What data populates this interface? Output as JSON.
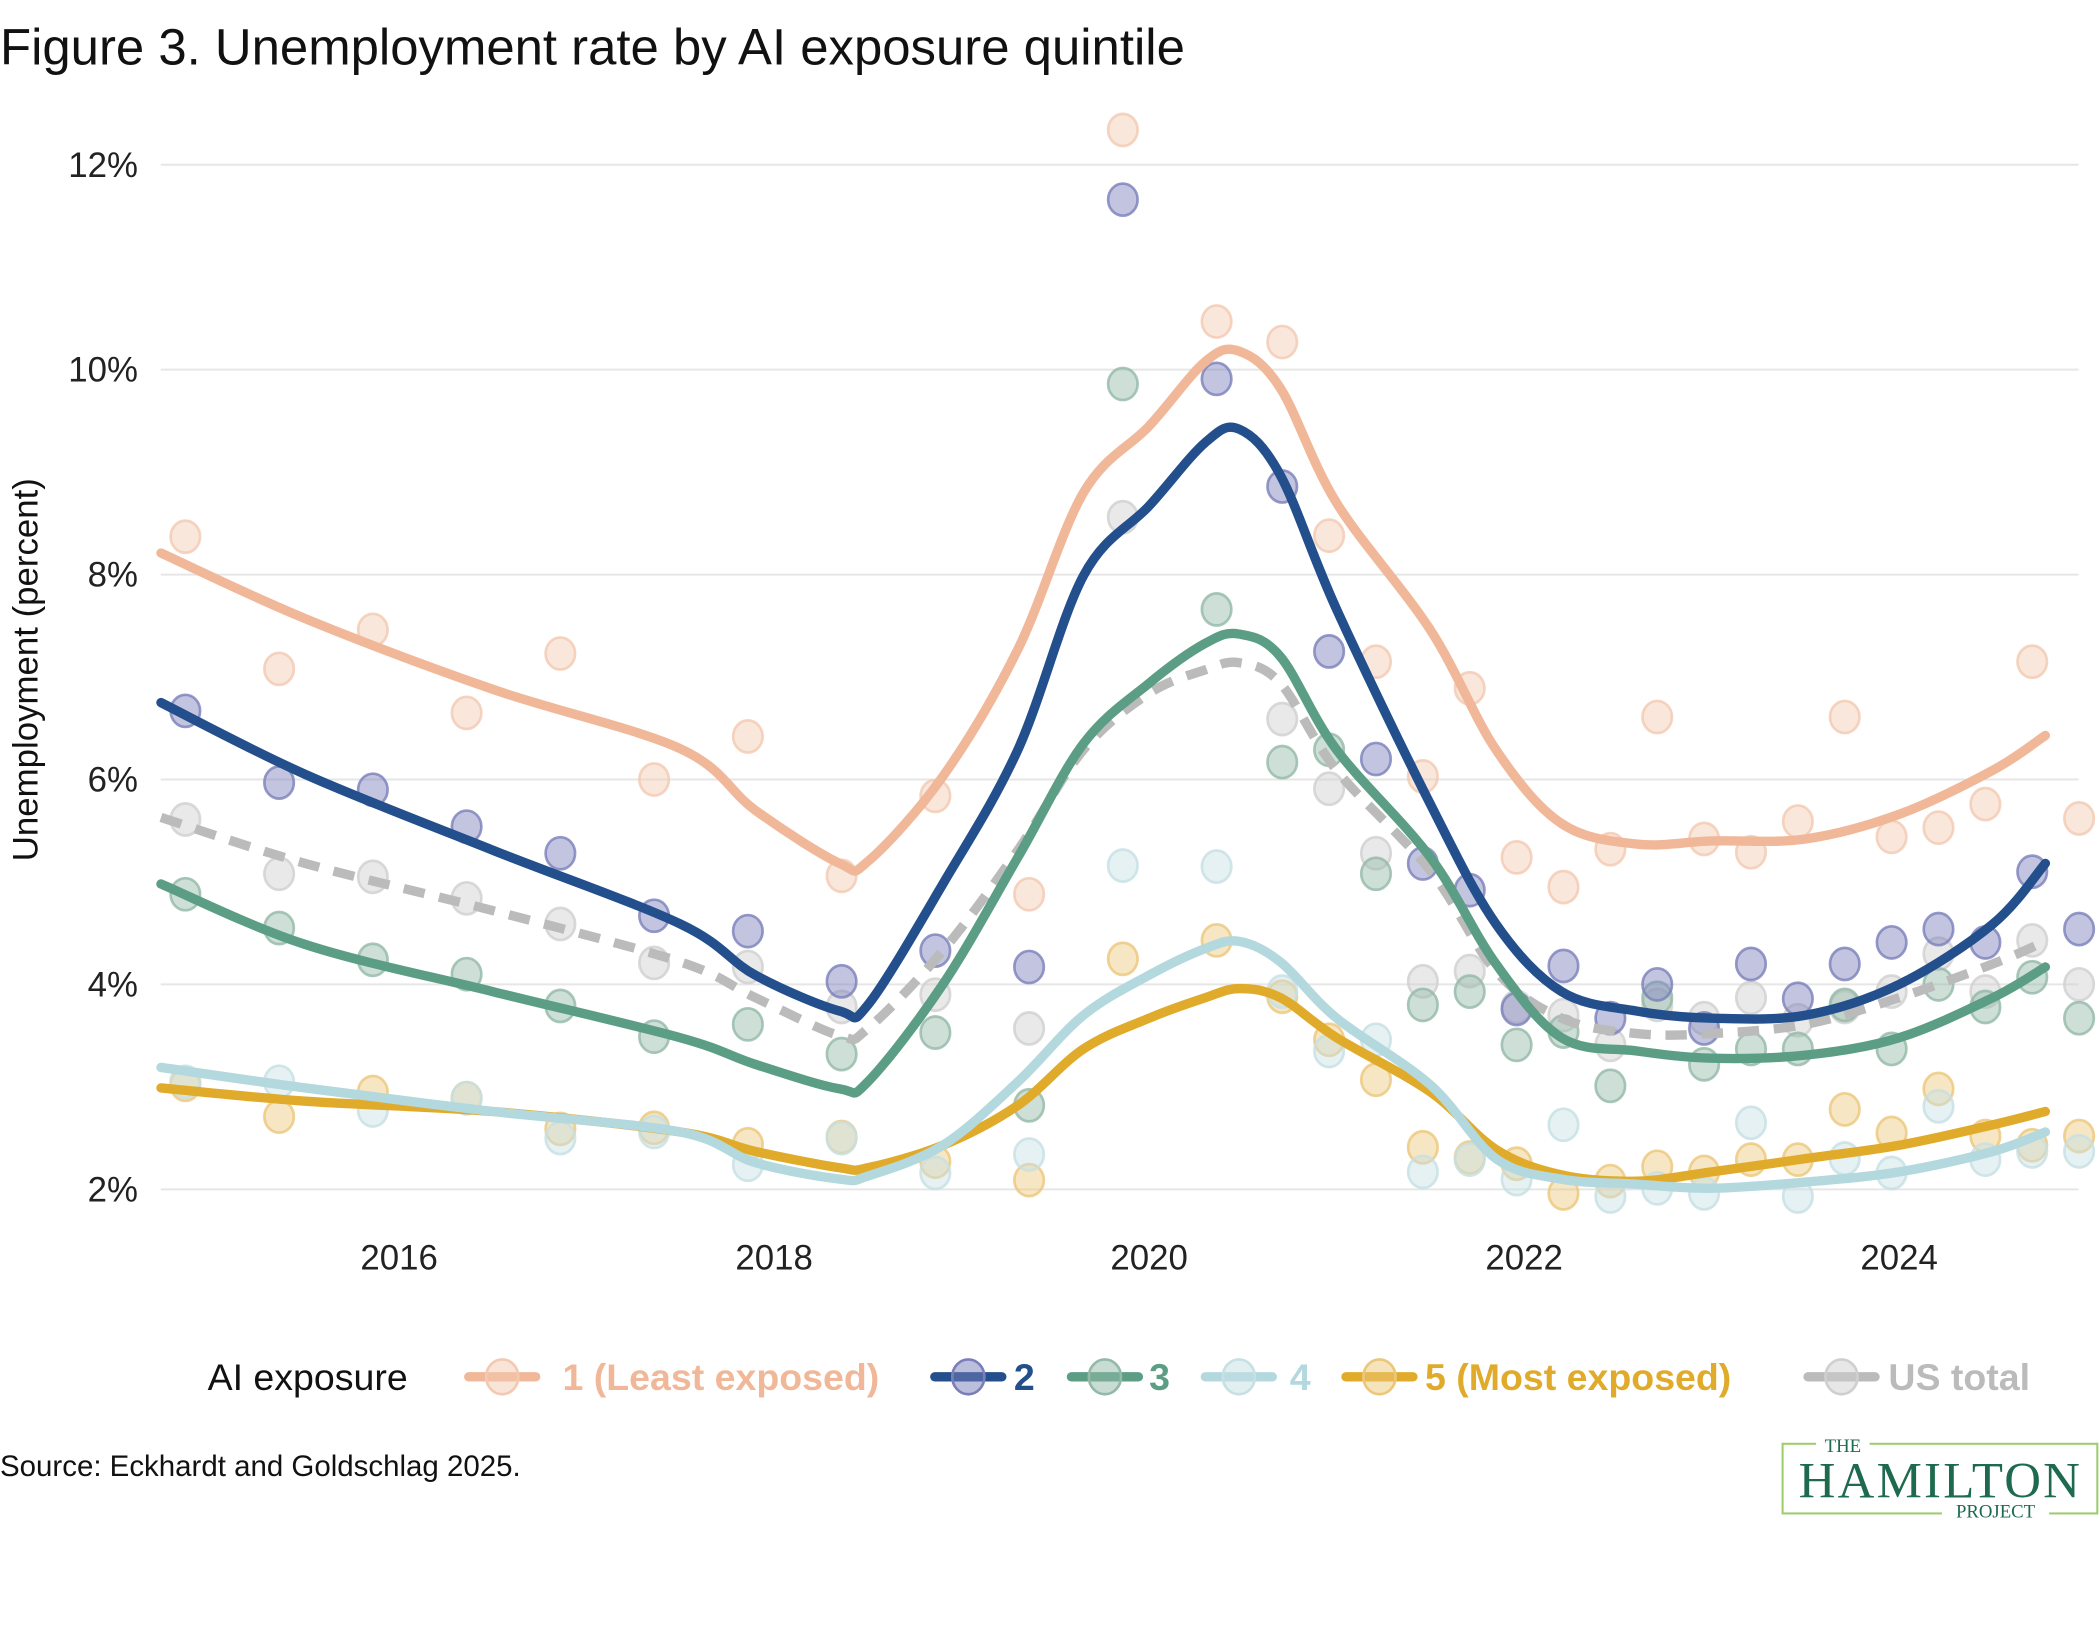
{
  "title": "Figure 3. Unemployment rate by AI exposure quintile",
  "source": "Source: Eckhardt and Goldschlag 2025.",
  "logo": {
    "top": "THE",
    "main": "HAMILTON",
    "bottom": "PROJECT",
    "color": "#1d6a4e"
  },
  "legend": {
    "title": "AI exposure"
  },
  "chart_data": {
    "type": "line",
    "title": "Figure 3. Unemployment rate by AI exposure quintile",
    "xlabel": "",
    "ylabel": "Unemployment (percent)",
    "xlim": [
      2014.73,
      2025.1
    ],
    "ylim": [
      1.6,
      12.4
    ],
    "x_ticks": [
      2016,
      2018,
      2020,
      2022,
      2024
    ],
    "x_tick_labels": [
      "2016",
      "2018",
      "2020",
      "2022",
      "2024"
    ],
    "y_ticks": [
      2,
      4,
      6,
      8,
      10,
      12
    ],
    "y_tick_labels": [
      "2%",
      "4%",
      "6%",
      "8%",
      "10%",
      "12%"
    ],
    "grid": "horizontal",
    "legend_position": "bottom",
    "point_x": [
      2014.86,
      2015.36,
      2015.86,
      2016.36,
      2016.86,
      2017.36,
      2017.86,
      2018.36,
      2018.86,
      2019.36,
      2019.86,
      2020.36,
      2020.71,
      2020.96,
      2021.21,
      2021.46,
      2021.71,
      2021.96,
      2022.21,
      2022.46,
      2022.71,
      2022.96,
      2023.21,
      2023.46,
      2023.71,
      2023.96,
      2024.21,
      2024.46,
      2024.71,
      2024.96
    ],
    "trend_x": [
      2014.73,
      2015.5,
      2016.5,
      2017.5,
      2017.9,
      2018.35,
      2018.5,
      2018.9,
      2019.3,
      2019.65,
      2020.0,
      2020.3,
      2020.48,
      2020.7,
      2021.0,
      2021.5,
      2021.85,
      2022.2,
      2022.6,
      2023.0,
      2023.5,
      2024.0,
      2024.5,
      2024.78
    ],
    "series": [
      {
        "name": "1 (Least exposed)",
        "color": "#f0b898",
        "dot_color": "#f3c9b2",
        "dashed": false,
        "points": [
          8.37,
          7.08,
          7.46,
          6.65,
          7.23,
          6.0,
          6.42,
          5.06,
          5.84,
          4.88,
          12.34,
          10.47,
          10.27,
          8.38,
          7.15,
          6.03,
          6.89,
          5.24,
          4.95,
          5.32,
          6.61,
          5.42,
          5.29,
          5.59,
          6.61,
          5.44,
          5.53,
          5.76,
          7.15,
          5.62
        ],
        "trend": [
          8.21,
          7.57,
          6.88,
          6.3,
          5.7,
          5.18,
          5.2,
          6.03,
          7.27,
          8.8,
          9.45,
          10.08,
          10.18,
          9.82,
          8.7,
          7.46,
          6.29,
          5.57,
          5.37,
          5.4,
          5.42,
          5.66,
          6.09,
          6.43
        ]
      },
      {
        "name": "2",
        "color": "#234f8c",
        "dot_color": "#7a7fba",
        "dashed": false,
        "points": [
          6.67,
          5.97,
          5.9,
          5.54,
          5.28,
          4.67,
          4.52,
          4.03,
          4.33,
          4.17,
          11.66,
          9.91,
          8.86,
          7.25,
          6.2,
          5.18,
          4.92,
          3.76,
          4.18,
          3.67,
          4.0,
          3.57,
          4.2,
          3.86,
          4.2,
          4.41,
          4.54,
          4.41,
          5.1,
          4.54
        ],
        "trend": [
          6.75,
          6.05,
          5.31,
          4.59,
          4.09,
          3.74,
          3.8,
          4.98,
          6.29,
          7.99,
          8.67,
          9.29,
          9.42,
          8.97,
          7.66,
          5.76,
          4.59,
          3.93,
          3.74,
          3.67,
          3.7,
          4.0,
          4.59,
          5.18
        ]
      },
      {
        "name": "3",
        "color": "#5c9e85",
        "dot_color": "#93b9a8",
        "dashed": false,
        "points": [
          4.88,
          4.55,
          4.24,
          4.1,
          3.79,
          3.49,
          3.61,
          3.32,
          3.53,
          2.82,
          9.86,
          7.66,
          6.17,
          6.29,
          5.08,
          3.8,
          3.93,
          3.41,
          3.54,
          3.01,
          3.87,
          3.22,
          3.37,
          3.37,
          3.8,
          3.37,
          4.0,
          3.78,
          4.07,
          3.67
        ],
        "trend": [
          4.98,
          4.39,
          3.93,
          3.48,
          3.22,
          2.98,
          3.05,
          4.0,
          5.24,
          6.35,
          6.94,
          7.33,
          7.42,
          7.2,
          6.29,
          5.24,
          4.2,
          3.48,
          3.35,
          3.28,
          3.31,
          3.48,
          3.87,
          4.17
        ]
      },
      {
        "name": "4",
        "color": "#b3d8de",
        "dot_color": "#c6e0e4",
        "dashed": false,
        "points": [
          3.05,
          3.05,
          2.77,
          2.89,
          2.5,
          2.56,
          2.24,
          2.5,
          2.16,
          2.34,
          5.16,
          5.15,
          3.93,
          3.35,
          3.46,
          2.17,
          2.29,
          2.1,
          2.63,
          1.93,
          2.01,
          1.96,
          2.65,
          1.93,
          2.3,
          2.16,
          2.81,
          2.29,
          2.37,
          2.37
        ],
        "trend": [
          3.19,
          2.99,
          2.76,
          2.56,
          2.26,
          2.1,
          2.13,
          2.43,
          3.05,
          3.7,
          4.09,
          4.35,
          4.42,
          4.22,
          3.67,
          3.02,
          2.3,
          2.1,
          2.05,
          2.01,
          2.07,
          2.17,
          2.37,
          2.56
        ]
      },
      {
        "name": "5 (Most exposed)",
        "color": "#e0ab2a",
        "dot_color": "#ecc77a",
        "dashed": false,
        "points": [
          3.02,
          2.71,
          2.95,
          2.89,
          2.59,
          2.6,
          2.44,
          2.51,
          2.27,
          2.09,
          4.25,
          4.43,
          3.88,
          3.46,
          3.07,
          2.41,
          2.31,
          2.25,
          1.96,
          2.08,
          2.22,
          2.17,
          2.29,
          2.29,
          2.78,
          2.55,
          2.98,
          2.52,
          2.43,
          2.52
        ],
        "trend": [
          2.99,
          2.86,
          2.76,
          2.56,
          2.37,
          2.21,
          2.21,
          2.43,
          2.82,
          3.37,
          3.67,
          3.87,
          3.96,
          3.87,
          3.48,
          2.95,
          2.39,
          2.14,
          2.08,
          2.17,
          2.3,
          2.43,
          2.63,
          2.76
        ]
      },
      {
        "name": "US total",
        "color": "#bbbbbb",
        "dot_color": "#cfcfcf",
        "dashed": true,
        "points": [
          5.61,
          5.08,
          5.05,
          4.84,
          4.59,
          4.21,
          4.17,
          3.78,
          3.9,
          3.57,
          8.56,
          null,
          6.59,
          5.91,
          5.28,
          4.03,
          4.13,
          3.78,
          3.7,
          3.41,
          3.8,
          3.67,
          3.87,
          3.65,
          3.78,
          3.93,
          4.3,
          3.93,
          4.43,
          4.0
        ],
        "trend": [
          5.63,
          5.18,
          4.72,
          4.22,
          3.87,
          3.5,
          3.57,
          4.33,
          5.31,
          6.29,
          6.84,
          7.07,
          7.14,
          6.94,
          6.09,
          5.11,
          4.13,
          3.67,
          3.52,
          3.52,
          3.61,
          3.87,
          4.2,
          4.42
        ]
      }
    ]
  }
}
